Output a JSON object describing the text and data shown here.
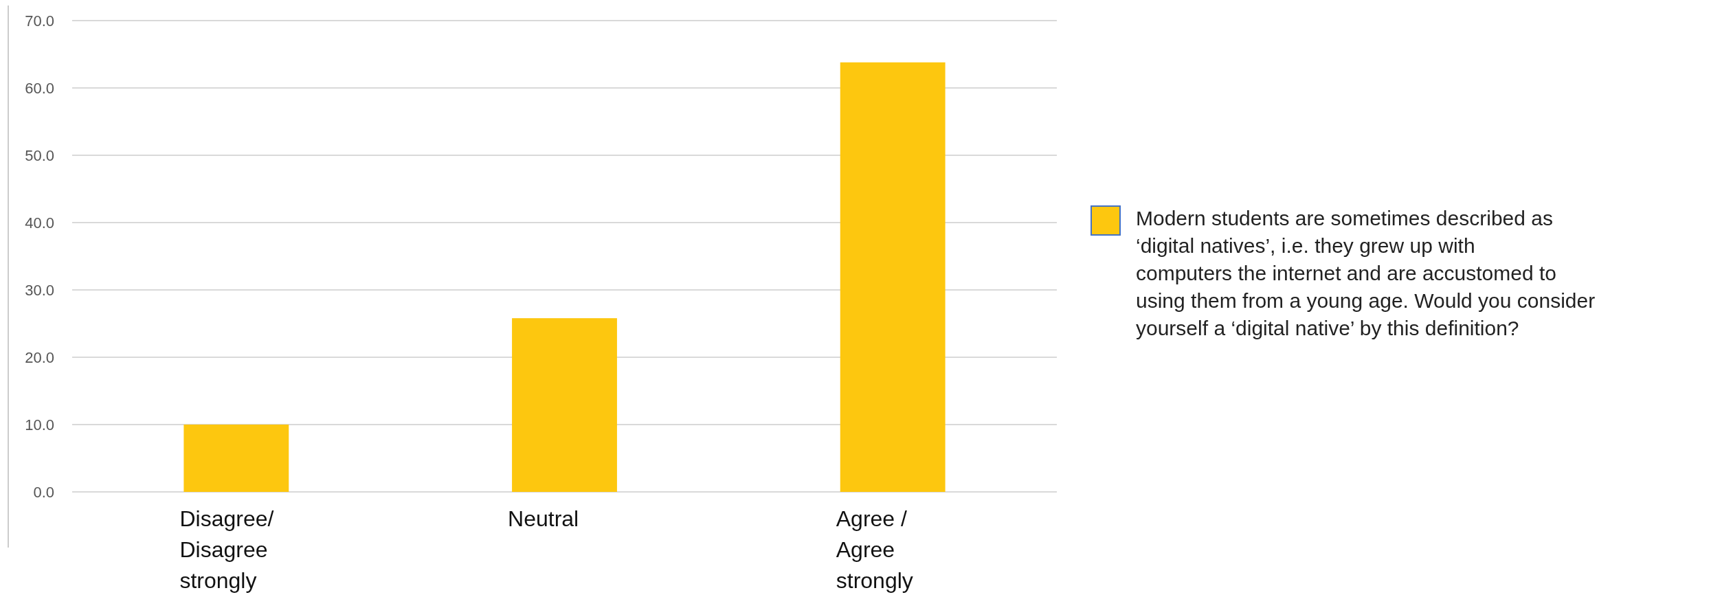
{
  "chart_data": {
    "type": "bar",
    "categories": [
      "Disagree/ Disagree strongly",
      "Neutral",
      "Agree / Agree strongly"
    ],
    "series": [
      {
        "name": "Modern students are sometimes described as ‘digital natives’, i.e. they grew up with computers the internet and are accustomed to using them from a young age. Would you consider yourself a ‘digital native’ by this definition?",
        "color": "#fdc70f",
        "values": [
          10.0,
          25.8,
          63.8
        ]
      }
    ],
    "ylim": [
      0,
      70
    ],
    "yticks": [
      {
        "value": 0,
        "label": "0.0"
      },
      {
        "value": 10,
        "label": "10.0"
      },
      {
        "value": 20,
        "label": "20.0"
      },
      {
        "value": 30,
        "label": "30.0"
      },
      {
        "value": 40,
        "label": "40.0"
      },
      {
        "value": 50,
        "label": "50.0"
      },
      {
        "value": 60,
        "label": "60.0"
      },
      {
        "value": 70,
        "label": "70.0"
      }
    ],
    "grid": "y",
    "legend": "right"
  }
}
